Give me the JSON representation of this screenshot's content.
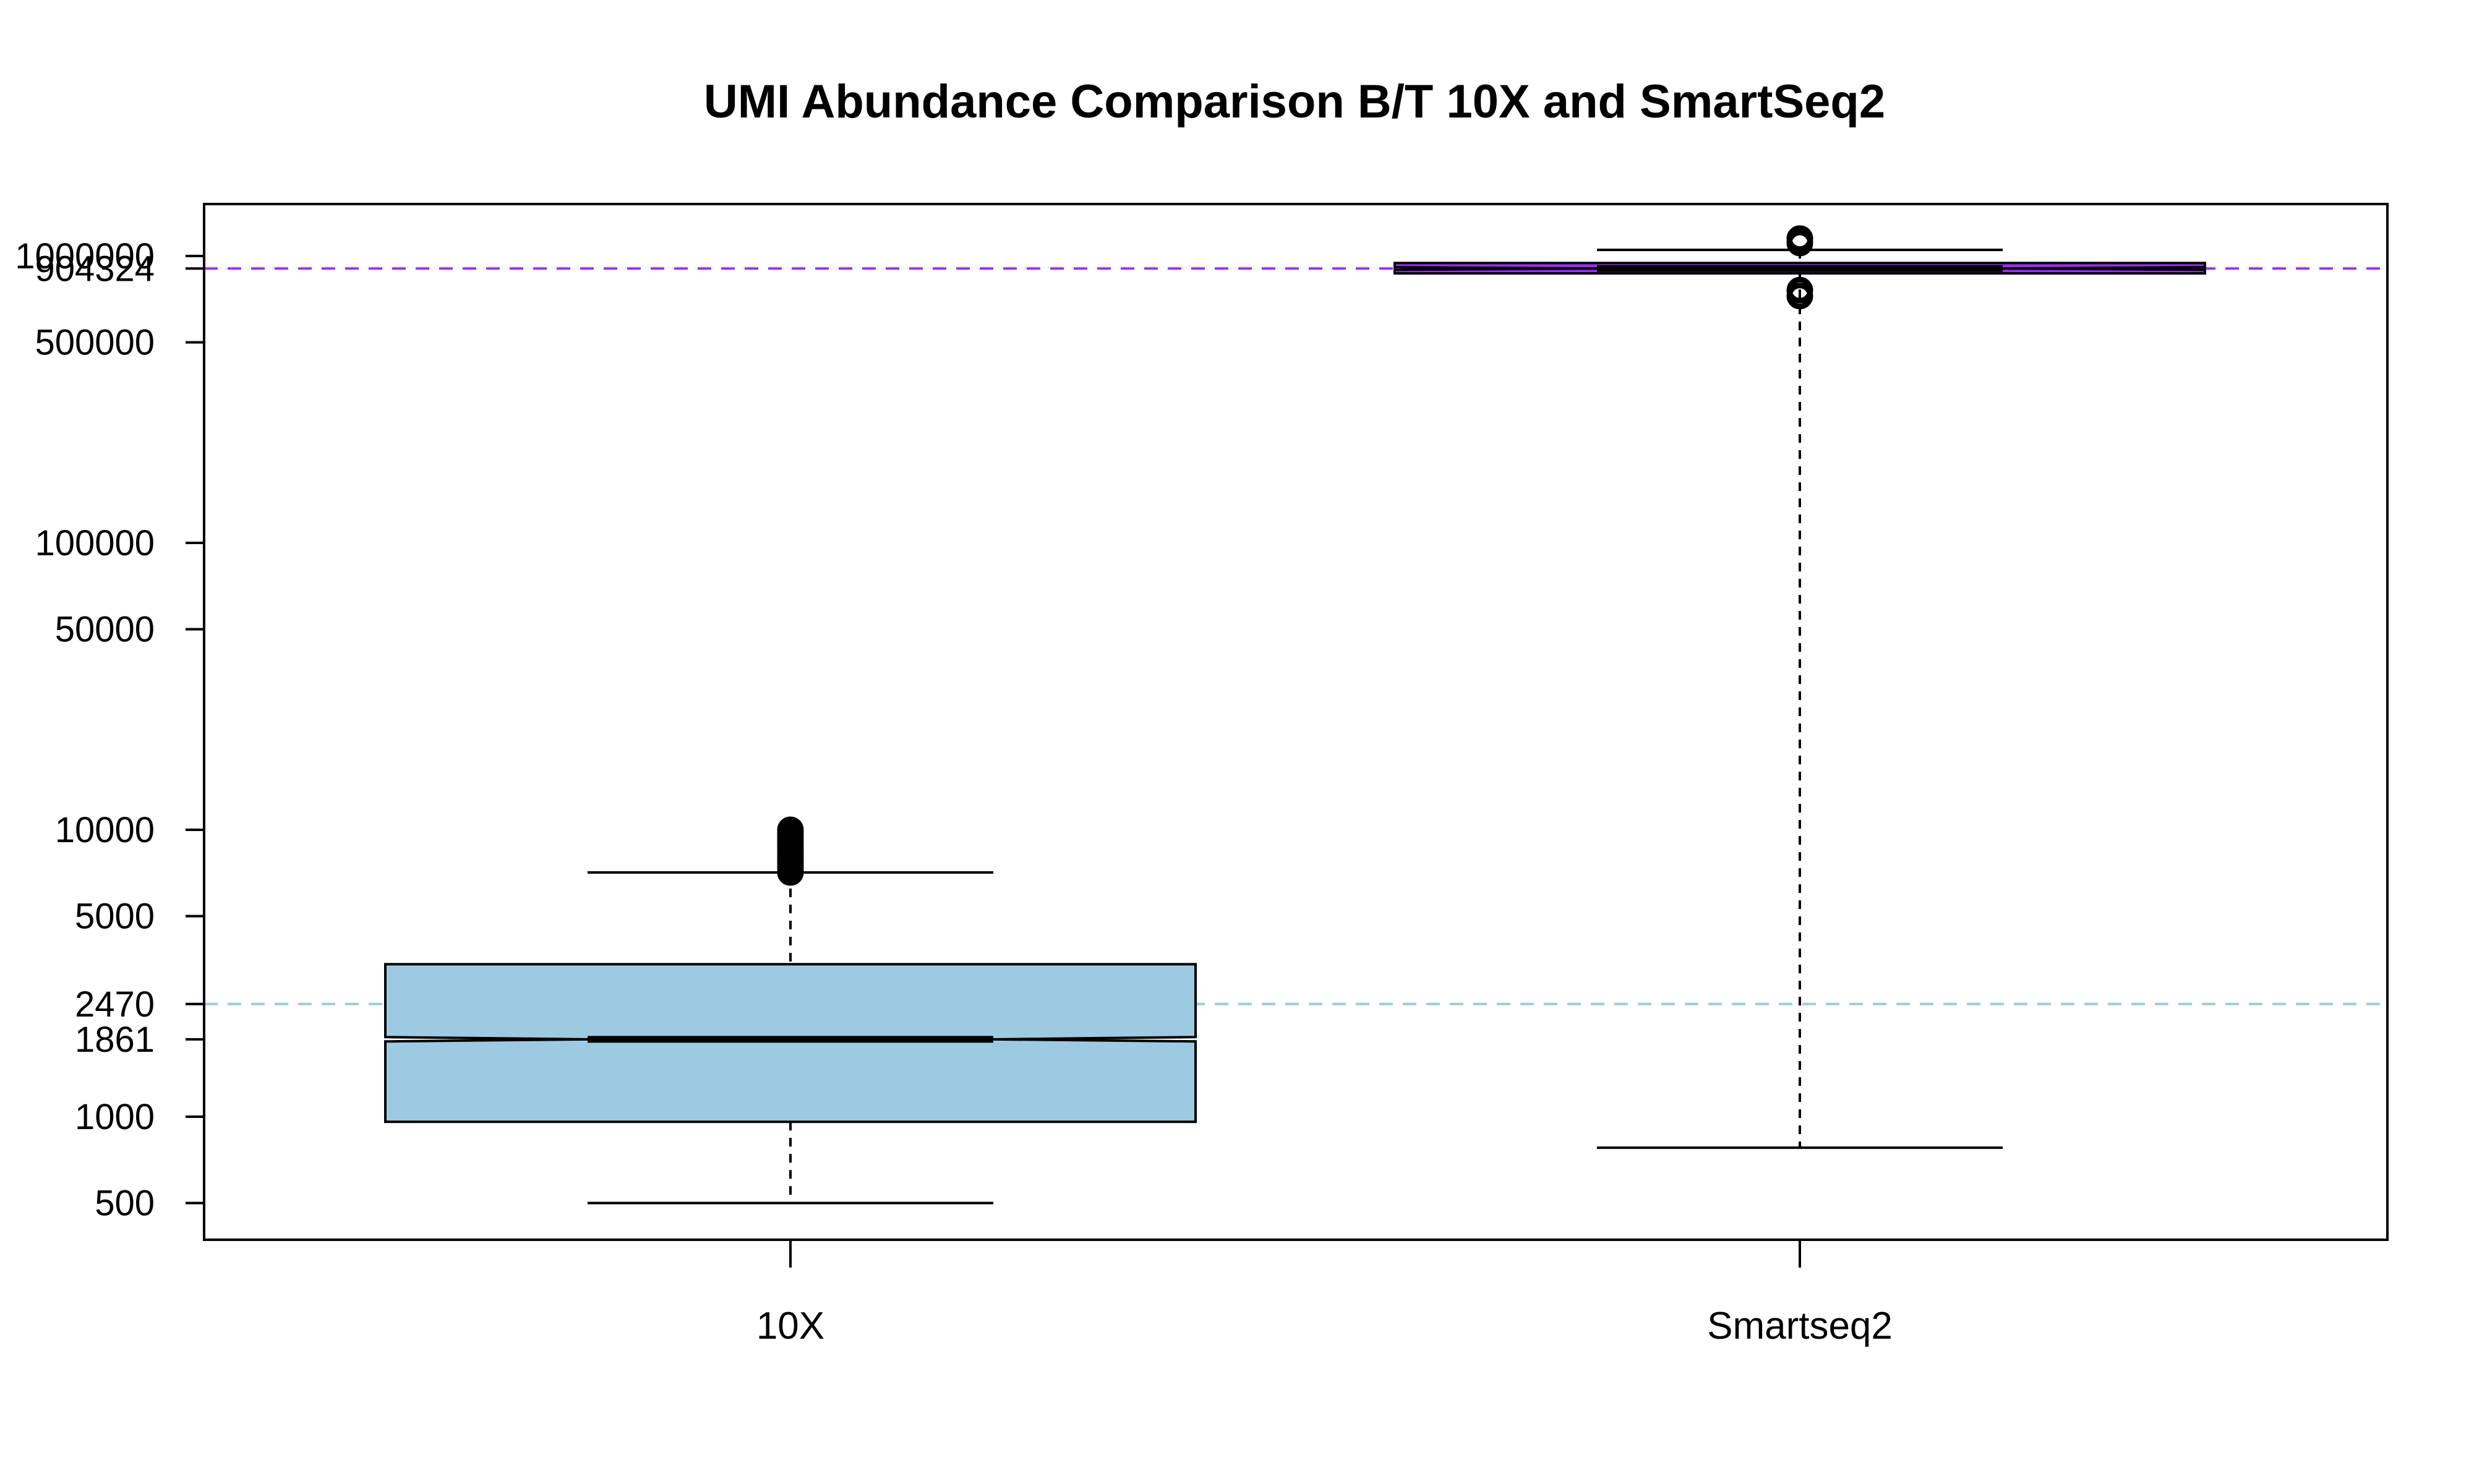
{
  "chart_data": {
    "type": "box",
    "title": "UMI Abundance Comparison B/T 10X and SmartSeq2",
    "xlabel": "",
    "ylabel": "",
    "y_scale": "log",
    "ylim": [
      380,
      1450000
    ],
    "notched": true,
    "y_ticks": [
      500,
      1000,
      1861,
      2470,
      5000,
      10000,
      50000,
      100000,
      500000,
      904324,
      1000000
    ],
    "y_tick_labels": [
      "500",
      "1000",
      "1861",
      "2470",
      "5000",
      "10000",
      "50000",
      "100000",
      "500000",
      "904324",
      "1000000"
    ],
    "categories": [
      "10X",
      "Smartseq2"
    ],
    "boxes": [
      {
        "category": "10X",
        "color": "#9ecae1",
        "whisker_low": 500,
        "q1": 960,
        "median": 1861,
        "q3": 3400,
        "whisker_high": 7100,
        "notch_low": 1830,
        "notch_high": 1895,
        "outliers_range": [
          7100,
          10000
        ]
      },
      {
        "category": "Smartseq2",
        "color": "#9b30ff",
        "whisker_low": 780,
        "q1": 870000,
        "median": 904324,
        "q3": 945000,
        "whisker_high": 1050000,
        "notch_low": 895000,
        "notch_high": 914000,
        "outliers": [
          1110000,
          1150000,
          725000,
          760000
        ]
      }
    ],
    "reference_lines": [
      {
        "value": 2470,
        "color": "#9ecae1",
        "style": "dashed"
      },
      {
        "value": 904324,
        "color": "#9b30ff",
        "style": "dashed"
      }
    ],
    "grid": false,
    "legend": "none"
  }
}
